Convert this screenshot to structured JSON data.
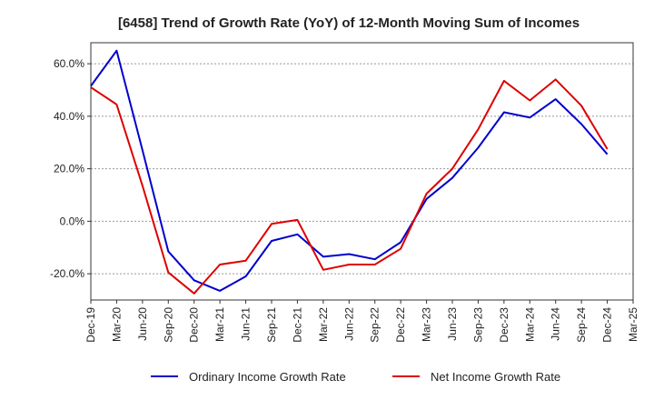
{
  "chart_data": {
    "type": "line",
    "title": "[6458]  Trend of Growth Rate (YoY) of 12-Month Moving Sum of Incomes",
    "xlabel": "",
    "ylabel": "",
    "x_tick_labels": [
      "Dec-19",
      "Mar-20",
      "Jun-20",
      "Sep-20",
      "Dec-20",
      "Mar-21",
      "Jun-21",
      "Sep-21",
      "Dec-21",
      "Mar-22",
      "Jun-22",
      "Sep-22",
      "Dec-22",
      "Mar-23",
      "Jun-23",
      "Sep-23",
      "Dec-23",
      "Mar-24",
      "Jun-24",
      "Sep-24",
      "Dec-24",
      "Mar-25"
    ],
    "categories": [
      "Dec-19",
      "Mar-20",
      "Jun-20",
      "Sep-20",
      "Dec-20",
      "Mar-21",
      "Jun-21",
      "Sep-21",
      "Dec-21",
      "Mar-22",
      "Jun-22",
      "Sep-22",
      "Dec-22",
      "Mar-23",
      "Jun-23",
      "Sep-23",
      "Dec-23",
      "Mar-24",
      "Jun-24",
      "Sep-24",
      "Dec-24"
    ],
    "y_ticks": [
      -20,
      0,
      20,
      40,
      60
    ],
    "y_tick_labels": [
      "-20.0%",
      "0.0%",
      "20.0%",
      "40.0%",
      "60.0%"
    ],
    "ylim": [
      -30,
      68
    ],
    "grid": true,
    "legend_position": "bottom",
    "series": [
      {
        "name": "Ordinary Income Growth Rate",
        "color": "#0000cc",
        "values": [
          51.5,
          65.0,
          27.0,
          -11.5,
          -22.5,
          -26.5,
          -21.0,
          -7.5,
          -5.0,
          -13.5,
          -12.5,
          -14.5,
          -8.0,
          8.5,
          16.5,
          28.0,
          41.5,
          39.5,
          46.5,
          37.0,
          25.5
        ]
      },
      {
        "name": "Net Income Growth Rate",
        "color": "#dd0000",
        "values": [
          51.0,
          44.5,
          13.5,
          -19.5,
          -27.5,
          -16.5,
          -15.0,
          -1.0,
          0.5,
          -18.5,
          -16.5,
          -16.5,
          -10.5,
          10.5,
          20.0,
          35.0,
          53.5,
          46.0,
          54.0,
          44.0,
          27.5
        ]
      }
    ]
  }
}
